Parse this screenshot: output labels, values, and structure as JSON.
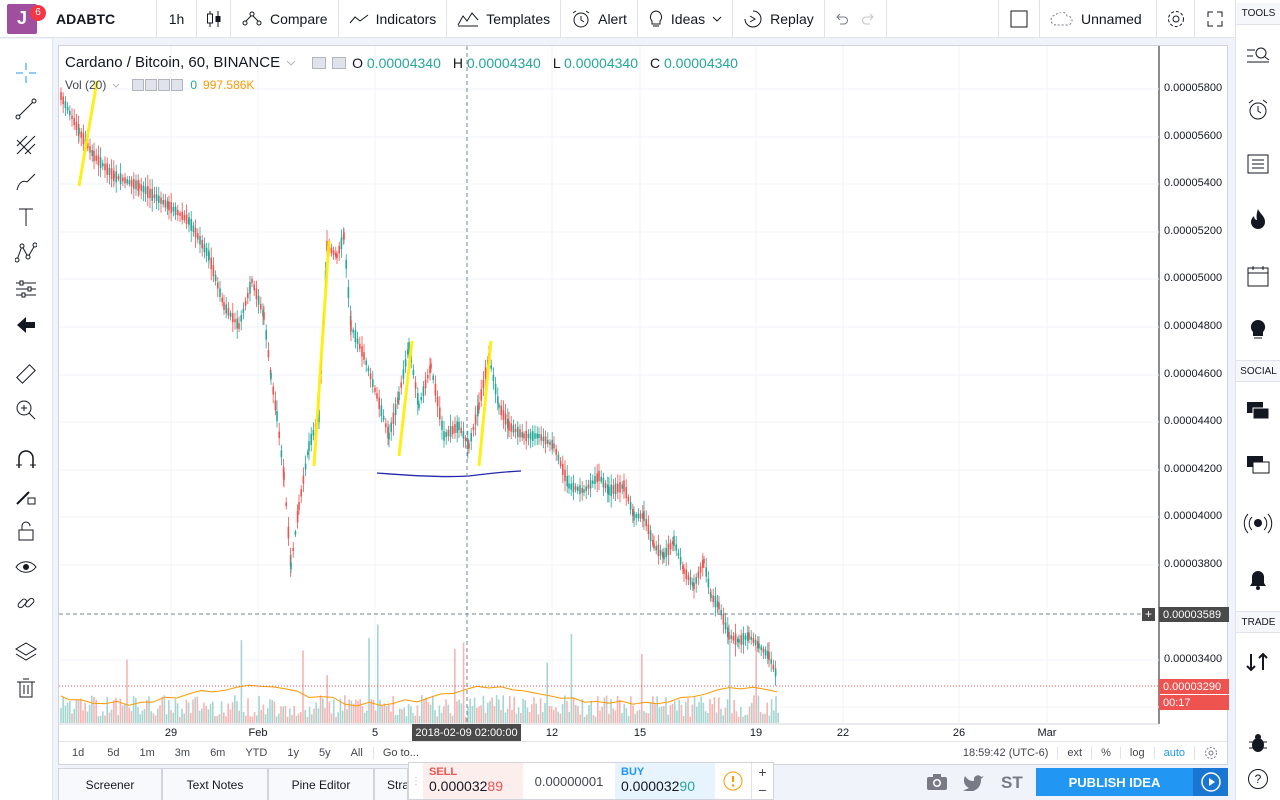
{
  "app": {
    "logo_letter": "J",
    "notification_count": "6"
  },
  "toolbar": {
    "symbol": "ADABTC",
    "interval": "1h",
    "compare": "Compare",
    "indicators": "Indicators",
    "templates": "Templates",
    "alert": "Alert",
    "ideas": "Ideas",
    "replay": "Replay",
    "layout_name": "Unnamed"
  },
  "legend": {
    "title": "Cardano / Bitcoin, 60, BINANCE",
    "o_label": "O",
    "o": "0.00004340",
    "h_label": "H",
    "h": "0.00004340",
    "l_label": "L",
    "l": "0.00004340",
    "c_label": "C",
    "c": "0.00004340",
    "vol_label": "Vol (20)",
    "vol_value": "0",
    "vol_ma": "997.586K"
  },
  "price_axis": {
    "ticks": [
      "0.00005800",
      "0.00005600",
      "0.00005400",
      "0.00005200",
      "0.00005000",
      "0.00004800",
      "0.00004600",
      "0.00004400",
      "0.00004200",
      "0.00004000",
      "0.00003800",
      "0.00003400",
      "0.000"
    ],
    "crosshair_price": "0.00003589",
    "last_price": "0.00003290",
    "countdown": "00:17"
  },
  "time_axis": {
    "ticks": [
      "29",
      "Feb",
      "5",
      "12",
      "15",
      "19",
      "22",
      "26",
      "Mar"
    ],
    "crosshair_time": "2018-02-09 02:00:00"
  },
  "bottom_bar": {
    "ranges": [
      "1d",
      "5d",
      "1m",
      "3m",
      "6m",
      "YTD",
      "1y",
      "5y",
      "All"
    ],
    "goto": "Go to...",
    "clock": "18:59:42 (UTC-6)",
    "ext": "ext",
    "pct": "%",
    "log": "log",
    "auto": "auto"
  },
  "footer": {
    "tabs": [
      "Screener",
      "Text Notes",
      "Pine Editor",
      "Stra"
    ],
    "publish": "PUBLISH IDEA"
  },
  "trade_panel": {
    "sell_label": "SELL",
    "sell_price_main": "0.000032",
    "sell_price_big": "89",
    "spread": "0.00000001",
    "buy_label": "BUY",
    "buy_price_main": "0.000032",
    "buy_price_big": "90"
  },
  "right_sidebar": {
    "tools": "TOOLS",
    "social": "SOCIAL",
    "trade": "TRADE"
  },
  "footer_icons": {
    "st": "ST"
  },
  "colors": {
    "up": "#26a69a",
    "down": "#ef5350",
    "accent": "#2196f3",
    "price_orange": "#ff9800"
  }
}
